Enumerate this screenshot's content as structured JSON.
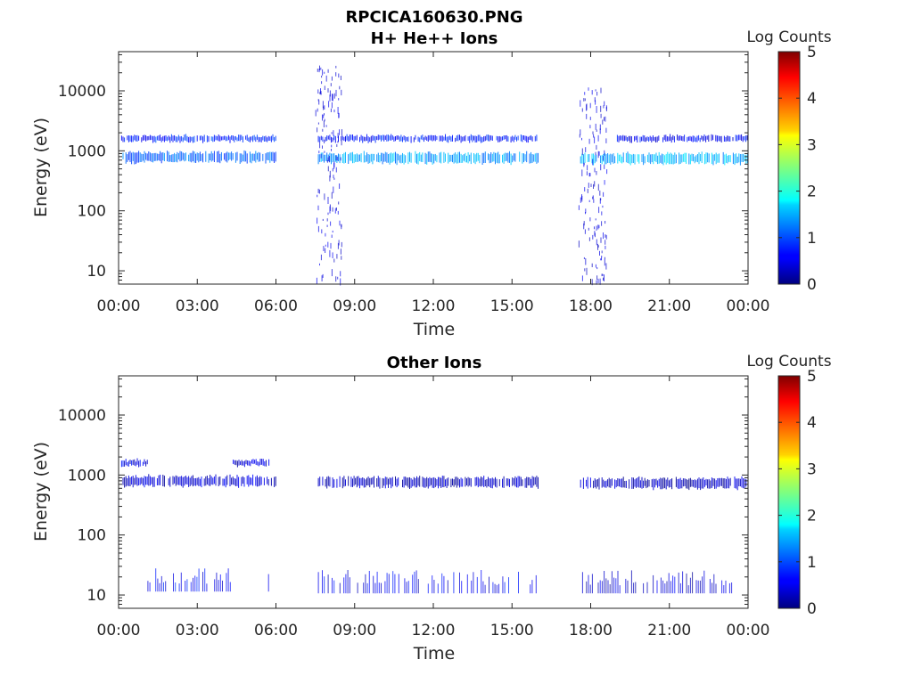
{
  "figure": {
    "title": "RPCICA160630.PNG"
  },
  "chart_data": [
    {
      "type": "heatmap",
      "title": "H+ He++ Ions",
      "xlabel": "Time",
      "ylabel": "Energy (eV)",
      "x_ticks": [
        "00:00",
        "03:00",
        "06:00",
        "09:00",
        "12:00",
        "15:00",
        "18:00",
        "21:00",
        "00:00"
      ],
      "xlim_hours": [
        0,
        24
      ],
      "y_scale": "log",
      "y_ticks": [
        "10",
        "100",
        "1000",
        "10000"
      ],
      "ylim": [
        6,
        45000
      ],
      "colorbar": {
        "label": "Log Counts",
        "ticks": [
          "0",
          "1",
          "2",
          "3",
          "4",
          "5"
        ],
        "range": [
          0,
          5
        ],
        "colormap": "jet"
      },
      "bands": [
        {
          "start_h": 0.1,
          "end_h": 6.0,
          "energy_ev": 780,
          "log_counts": 1.1
        },
        {
          "start_h": 0.1,
          "end_h": 6.0,
          "energy_ev": 1600,
          "log_counts": 0.8
        },
        {
          "start_h": 7.6,
          "end_h": 16.0,
          "energy_ev": 760,
          "log_counts": 1.4
        },
        {
          "start_h": 7.6,
          "end_h": 16.0,
          "energy_ev": 1600,
          "log_counts": 0.7
        },
        {
          "start_h": 17.6,
          "end_h": 24.0,
          "energy_ev": 740,
          "log_counts": 1.5
        },
        {
          "start_h": 19.0,
          "end_h": 24.0,
          "energy_ev": 1600,
          "log_counts": 0.6
        }
      ],
      "bursts": [
        {
          "start_h": 7.5,
          "end_h": 8.5,
          "energy_min_ev": 7,
          "energy_max_ev": 28000,
          "log_counts": 0.3
        },
        {
          "start_h": 17.5,
          "end_h": 18.6,
          "energy_min_ev": 7,
          "energy_max_ev": 12000,
          "log_counts": 0.3
        }
      ]
    },
    {
      "type": "heatmap",
      "title": "Other Ions",
      "xlabel": "Time",
      "ylabel": "Energy (eV)",
      "x_ticks": [
        "00:00",
        "03:00",
        "06:00",
        "09:00",
        "12:00",
        "15:00",
        "18:00",
        "21:00",
        "00:00"
      ],
      "xlim_hours": [
        0,
        24
      ],
      "y_scale": "log",
      "y_ticks": [
        "10",
        "100",
        "1000",
        "10000"
      ],
      "ylim": [
        6,
        45000
      ],
      "colorbar": {
        "label": "Log Counts",
        "ticks": [
          "0",
          "1",
          "2",
          "3",
          "4",
          "5"
        ],
        "range": [
          0,
          5
        ],
        "colormap": "jet"
      },
      "bands": [
        {
          "start_h": 0.1,
          "end_h": 6.0,
          "energy_ev": 790,
          "log_counts": 0.4
        },
        {
          "start_h": 0.1,
          "end_h": 1.1,
          "energy_ev": 1600,
          "log_counts": 0.5
        },
        {
          "start_h": 4.3,
          "end_h": 5.8,
          "energy_ev": 1600,
          "log_counts": 0.4
        },
        {
          "start_h": 7.6,
          "end_h": 16.0,
          "energy_ev": 760,
          "log_counts": 0.3
        },
        {
          "start_h": 17.6,
          "end_h": 24.0,
          "energy_ev": 730,
          "log_counts": 0.3
        },
        {
          "start_h": 1.1,
          "end_h": 4.3,
          "energy_ev": 15,
          "log_counts": 0.6
        },
        {
          "start_h": 5.7,
          "end_h": 5.9,
          "energy_ev": 15,
          "log_counts": 0.5
        },
        {
          "start_h": 7.6,
          "end_h": 16.0,
          "energy_ev": 14,
          "log_counts": 0.5
        },
        {
          "start_h": 17.6,
          "end_h": 23.8,
          "energy_ev": 14,
          "log_counts": 0.4
        }
      ],
      "bursts": []
    }
  ]
}
